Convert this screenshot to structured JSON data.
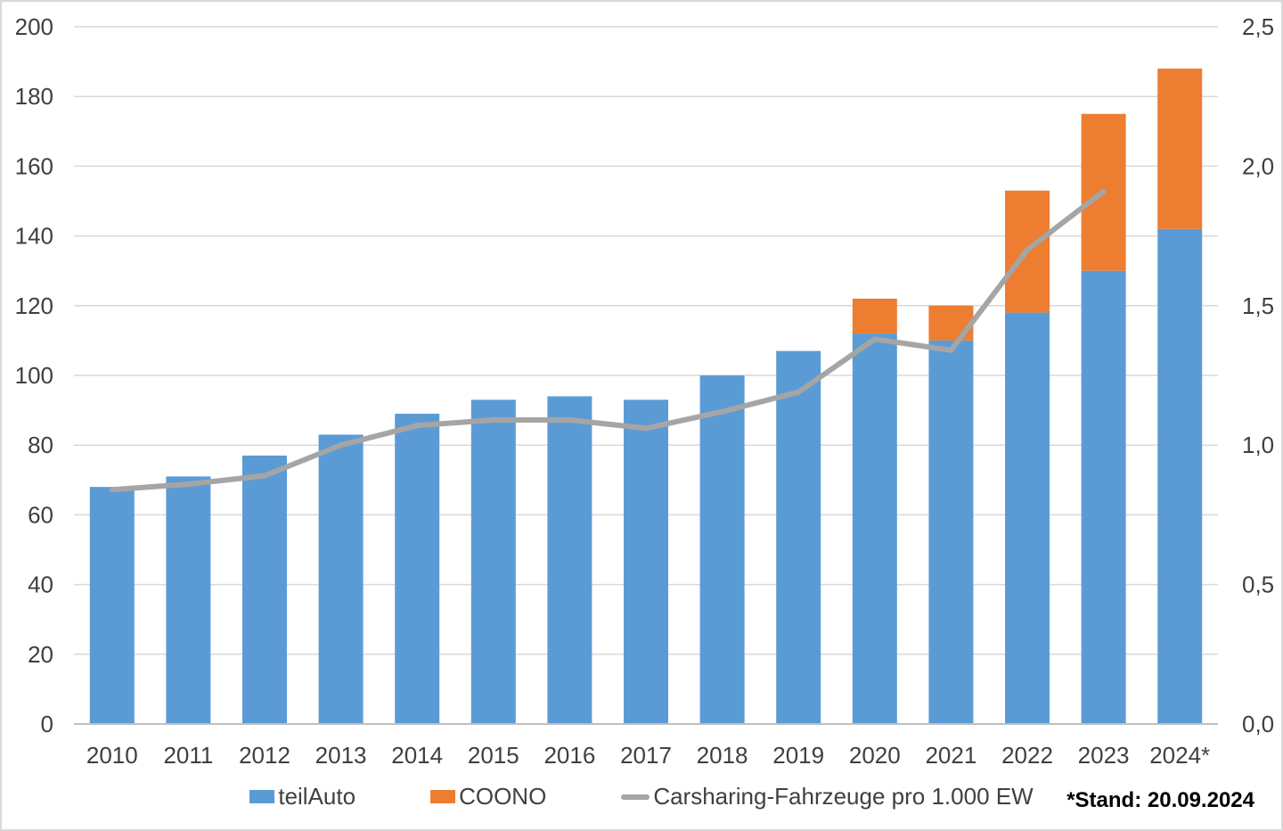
{
  "chart_data": {
    "type": "bar",
    "subtype": "stacked-bars-with-secondary-axis-line",
    "title": "",
    "categories": [
      "2010",
      "2011",
      "2012",
      "2013",
      "2014",
      "2015",
      "2016",
      "2017",
      "2018",
      "2019",
      "2020",
      "2021",
      "2022",
      "2023",
      "2024*"
    ],
    "series": [
      {
        "name": "teilAuto",
        "kind": "bar",
        "axis": "left",
        "color": "#5B9BD5",
        "values": [
          68,
          71,
          77,
          83,
          89,
          93,
          94,
          93,
          100,
          107,
          112,
          110,
          118,
          130,
          142
        ]
      },
      {
        "name": "COONO",
        "kind": "bar",
        "axis": "left",
        "color": "#ED7D31",
        "values": [
          0,
          0,
          0,
          0,
          0,
          0,
          0,
          0,
          0,
          0,
          10,
          10,
          35,
          45,
          46
        ]
      },
      {
        "name": "Carsharing-Fahrzeuge pro 1.000 EW",
        "kind": "line",
        "axis": "right",
        "color": "#A5A5A5",
        "values": [
          0.84,
          0.86,
          0.89,
          1.0,
          1.07,
          1.09,
          1.09,
          1.06,
          1.12,
          1.19,
          1.38,
          1.34,
          1.7,
          1.91,
          null
        ]
      }
    ],
    "stacked_totals": [
      68,
      71,
      77,
      83,
      89,
      93,
      94,
      93,
      100,
      107,
      122,
      120,
      153,
      175,
      188
    ],
    "left_axis": {
      "min": 0,
      "max": 200,
      "step": 20,
      "tick_labels": [
        "0",
        "20",
        "40",
        "60",
        "80",
        "100",
        "120",
        "140",
        "160",
        "180",
        "200"
      ]
    },
    "right_axis": {
      "min": 0,
      "max": 2.5,
      "step": 0.5,
      "tick_labels": [
        "0,0",
        "0,5",
        "1,0",
        "1,5",
        "2,0",
        "2,5"
      ]
    },
    "grid": true,
    "legend_position": "bottom",
    "footnote": "*Stand: 20.09.2024",
    "colors": {
      "gridline": "#D9D9D9",
      "axis_line": "#BFBFBF",
      "tick_text": "#3F3F3F",
      "legend_text": "#404040",
      "footnote_text": "#000000",
      "background": "#FFFFFF"
    }
  }
}
